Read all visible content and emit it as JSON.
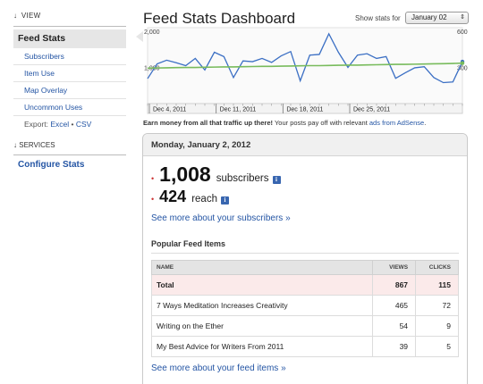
{
  "sidebar": {
    "view_heading": "VIEW",
    "active_item": "Feed Stats",
    "links": [
      "Subscribers",
      "Item Use",
      "Map Overlay",
      "Uncommon Uses"
    ],
    "export_label": "Export:",
    "export_excel": "Excel",
    "export_sep": "•",
    "export_csv": "CSV",
    "services_heading": "SERVICES",
    "configure": "Configure Stats",
    "heading_arrow": "↓"
  },
  "header": {
    "title": "Feed Stats Dashboard",
    "show_stats_label": "Show stats for",
    "date_value": "January 02",
    "date_icon": "chevron-updown-icon"
  },
  "chart_data": {
    "type": "line",
    "left_axis_ticks": [
      "2,000",
      "1,000"
    ],
    "right_axis_ticks": [
      "600",
      "300"
    ],
    "left_range": [
      0,
      2100
    ],
    "right_range": [
      0,
      630
    ],
    "x_labels": [
      "Dec 4, 2011",
      "Dec 11, 2011",
      "Dec 18, 2011",
      "Dec 25, 2011"
    ],
    "series": [
      {
        "axis": "left",
        "color": "#3b6fc4",
        "values": [
          690,
          1100,
          1200,
          1130,
          1050,
          1250,
          930,
          1420,
          1300,
          720,
          1180,
          1160,
          1250,
          1140,
          1320,
          1440,
          630,
          1340,
          1360,
          1930,
          1420,
          1000,
          1340,
          1380,
          1250,
          1300,
          700,
          850,
          990,
          1020,
          720,
          580,
          600,
          1160
        ]
      },
      {
        "axis": "left",
        "color": "#78bb5c",
        "values": [
          980,
          985,
          990,
          995,
          1000,
          1000,
          1005,
          1010,
          1015,
          1015,
          1020,
          1025,
          1030,
          1030,
          1035,
          1040,
          1045,
          1050,
          1050,
          1055,
          1060,
          1065,
          1065,
          1070,
          1075,
          1080,
          1085,
          1085,
          1090,
          1095,
          1100,
          1105,
          1110,
          1120
        ]
      }
    ],
    "grid": false
  },
  "adsense": {
    "bold": "Earn money from all that traffic up there!",
    "text": " Your posts pay off with relevant ",
    "link": "ads from AdSense",
    "end": "."
  },
  "panel": {
    "date_heading": "Monday, January 2, 2012",
    "subscribers_value": "1,008",
    "subscribers_label": "subscribers",
    "reach_value": "424",
    "reach_label": "reach",
    "info_glyph": "i",
    "bullet": "•",
    "see_subscribers": "See more about your subscribers »",
    "popular_heading": "Popular Feed Items",
    "columns": [
      "NAME",
      "VIEWS",
      "CLICKS"
    ],
    "total_row": {
      "name": "Total",
      "views": "867",
      "clicks": "115"
    },
    "rows": [
      {
        "name": "7 Ways Meditation Increases Creativity",
        "views": "465",
        "clicks": "72"
      },
      {
        "name": "Writing on the Ether",
        "views": "54",
        "clicks": "9"
      },
      {
        "name": "My Best Advice for Writers From 2011",
        "views": "39",
        "clicks": "5"
      }
    ],
    "see_items": "See more about your feed items »"
  }
}
